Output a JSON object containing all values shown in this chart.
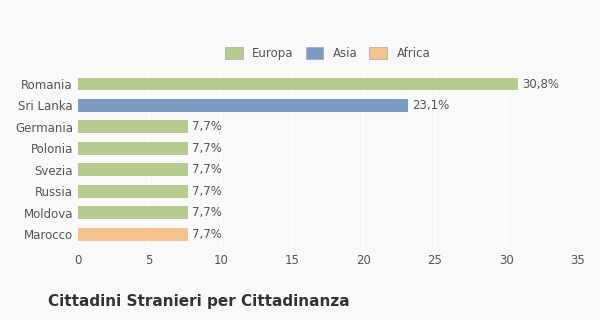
{
  "categories": [
    "Romania",
    "Sri Lanka",
    "Germania",
    "Polonia",
    "Svezia",
    "Russia",
    "Moldova",
    "Marocco"
  ],
  "values": [
    30.8,
    23.1,
    7.7,
    7.7,
    7.7,
    7.7,
    7.7,
    7.7
  ],
  "labels": [
    "30,8%",
    "23,1%",
    "7,7%",
    "7,7%",
    "7,7%",
    "7,7%",
    "7,7%",
    "7,7%"
  ],
  "bar_colors": [
    "#b5cc8e",
    "#7a9cc4",
    "#b5cc8e",
    "#b5cc8e",
    "#b5cc8e",
    "#b5cc8e",
    "#b5cc8e",
    "#f5c48a"
  ],
  "legend_labels": [
    "Europa",
    "Asia",
    "Africa"
  ],
  "legend_colors": [
    "#b5cc8e",
    "#7a9cc4",
    "#f5c48a"
  ],
  "xlim": [
    0,
    35
  ],
  "xticks": [
    0,
    5,
    10,
    15,
    20,
    25,
    30,
    35
  ],
  "title": "Cittadini Stranieri per Cittadinanza",
  "background_color": "#f9f9f9",
  "grid_color": "#ffffff",
  "label_fontsize": 8.5,
  "tick_fontsize": 8.5,
  "title_fontsize": 11,
  "subtitle_fontsize": 8
}
